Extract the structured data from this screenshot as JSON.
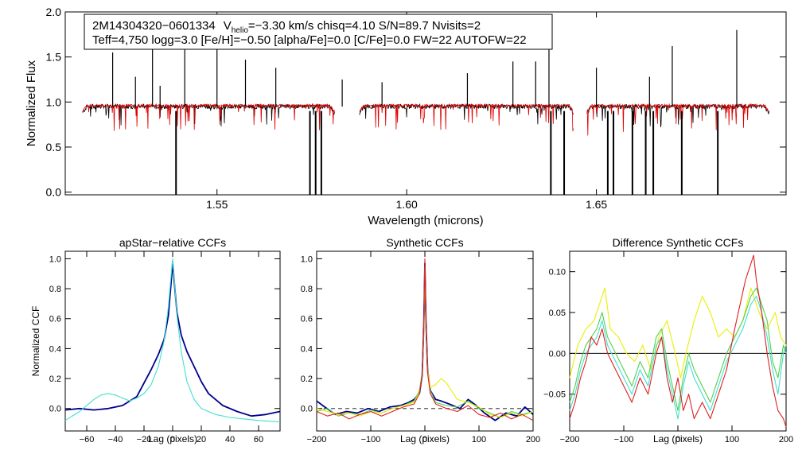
{
  "colors": {
    "observed": "#000000",
    "model": "#e00000",
    "navy": "#00008b",
    "cyan": "#40e0d0",
    "green": "#50d050",
    "yellow": "#e8f000",
    "red": "#e02020",
    "zero": "#000000",
    "dash": "#555555"
  },
  "chart_data": [
    {
      "type": "line",
      "panel": "spectrum",
      "info_line1": {
        "id": "2M14304320−0601334",
        "v_prefix": "V",
        "v_sub": "helio",
        "v_suffix": "=−3.30 km/s  chisq=4.10  S/N=89.7  Nvisits=2"
      },
      "info_line2": "Teff=4,750 logg=3.0 [Fe/H]=−0.50 [alpha/Fe]=0.0 [C/Fe]=0.0 FW=22 AUTOFW=22",
      "xlabel": "Wavelength (microns)",
      "ylabel": "Normalized Flux",
      "xlim": [
        1.51,
        1.7
      ],
      "ylim": [
        -0.03,
        2.0
      ],
      "xticks": [
        {
          "v": 1.55,
          "t": "1.55"
        },
        {
          "v": 1.6,
          "t": "1.60"
        },
        {
          "v": 1.65,
          "t": "1.65"
        }
      ],
      "yticks": [
        {
          "v": 0.0,
          "t": "0.0"
        },
        {
          "v": 0.5,
          "t": "0.5"
        },
        {
          "v": 1.0,
          "t": "1.0"
        },
        {
          "v": 1.5,
          "t": "1.5"
        },
        {
          "v": 2.0,
          "t": "2.0"
        }
      ],
      "chips": [
        [
          1.5145,
          1.581
        ],
        [
          1.5875,
          1.644
        ],
        [
          1.6475,
          1.6955
        ]
      ],
      "continuum": 0.95,
      "deep_lines": [
        1.5392,
        1.5745,
        1.576,
        1.5775,
        1.638,
        1.6415,
        1.653,
        1.6545,
        1.6595,
        1.663,
        1.665,
        1.6725,
        1.682
      ],
      "emission_lines": [
        {
          "x": 1.5225,
          "y": 1.55
        },
        {
          "x": 1.5285,
          "y": 1.28
        },
        {
          "x": 1.533,
          "y": 1.72
        },
        {
          "x": 1.535,
          "y": 1.18
        },
        {
          "x": 1.5415,
          "y": 1.58
        },
        {
          "x": 1.55,
          "y": 1.75
        },
        {
          "x": 1.5575,
          "y": 1.47
        },
        {
          "x": 1.5655,
          "y": 1.38
        },
        {
          "x": 1.583,
          "y": 1.25
        },
        {
          "x": 1.5935,
          "y": 1.22
        },
        {
          "x": 1.616,
          "y": 1.32
        },
        {
          "x": 1.628,
          "y": 1.45
        },
        {
          "x": 1.634,
          "y": 1.45
        },
        {
          "x": 1.6375,
          "y": 1.9
        },
        {
          "x": 1.65,
          "y": 1.38
        },
        {
          "x": 1.664,
          "y": 1.28
        },
        {
          "x": 1.67,
          "y": 1.62
        },
        {
          "x": 1.687,
          "y": 1.8
        }
      ]
    },
    {
      "type": "line",
      "panel": "ccf1",
      "title": "apStar−relative CCFs",
      "xlabel": "Lag (pixels)",
      "ylabel": "Normalized CCF",
      "xlim": [
        -75,
        75
      ],
      "ylim": [
        -0.15,
        1.05
      ],
      "xticks": [
        {
          "v": -60,
          "t": "−60"
        },
        {
          "v": -40,
          "t": "−40"
        },
        {
          "v": -20,
          "t": "−20"
        },
        {
          "v": 0,
          "t": "0"
        },
        {
          "v": 20,
          "t": "20"
        },
        {
          "v": 40,
          "t": "40"
        },
        {
          "v": 60,
          "t": "60"
        }
      ],
      "yticks": [
        {
          "v": 0.0,
          "t": "0.0"
        },
        {
          "v": 0.2,
          "t": "0.2"
        },
        {
          "v": 0.4,
          "t": "0.4"
        },
        {
          "v": 0.6,
          "t": "0.6"
        },
        {
          "v": 0.8,
          "t": "0.8"
        },
        {
          "v": 1.0,
          "t": "1.0"
        }
      ],
      "series": [
        {
          "name": "navy",
          "color": "navy",
          "x": [
            -75,
            -65,
            -55,
            -45,
            -35,
            -25,
            -20,
            -15,
            -10,
            -6,
            -3,
            -1,
            0,
            1,
            3,
            6,
            10,
            15,
            20,
            25,
            35,
            45,
            55,
            65,
            75
          ],
          "y": [
            -0.01,
            0.0,
            -0.01,
            0.0,
            0.02,
            0.08,
            0.17,
            0.26,
            0.36,
            0.46,
            0.62,
            0.85,
            0.98,
            0.86,
            0.64,
            0.49,
            0.38,
            0.28,
            0.18,
            0.1,
            0.02,
            -0.02,
            -0.05,
            -0.04,
            -0.02
          ]
        },
        {
          "name": "cyan",
          "color": "cyan",
          "x": [
            -75,
            -65,
            -55,
            -50,
            -45,
            -40,
            -35,
            -30,
            -25,
            -20,
            -15,
            -10,
            -6,
            -3,
            -1,
            0,
            1,
            3,
            6,
            10,
            15,
            20,
            30,
            40,
            50,
            60,
            75
          ],
          "y": [
            -0.08,
            -0.02,
            0.06,
            0.09,
            0.1,
            0.09,
            0.07,
            0.05,
            0.07,
            0.1,
            0.16,
            0.28,
            0.45,
            0.68,
            0.9,
            1.0,
            0.88,
            0.62,
            0.38,
            0.18,
            0.06,
            0.0,
            -0.04,
            -0.06,
            -0.07,
            -0.08,
            -0.09
          ]
        }
      ]
    },
    {
      "type": "line",
      "panel": "ccf2",
      "title": "Synthetic CCFs",
      "xlabel": "Lag (pixels)",
      "xlim": [
        -200,
        200
      ],
      "ylim": [
        -0.15,
        1.05
      ],
      "xticks": [
        {
          "v": -200,
          "t": "−200"
        },
        {
          "v": -100,
          "t": "−100"
        },
        {
          "v": 0,
          "t": "0"
        },
        {
          "v": 100,
          "t": "100"
        },
        {
          "v": 200,
          "t": "200"
        }
      ],
      "yticks": [
        {
          "v": 0.0,
          "t": "0.0"
        },
        {
          "v": 0.2,
          "t": "0.2"
        },
        {
          "v": 0.4,
          "t": "0.4"
        },
        {
          "v": 0.6,
          "t": "0.6"
        },
        {
          "v": 0.8,
          "t": "0.8"
        },
        {
          "v": 1.0,
          "t": "1.0"
        }
      ],
      "baseline": 0.0,
      "series": [
        {
          "name": "navy",
          "color": "navy",
          "x": [
            -200,
            -185,
            -165,
            -145,
            -125,
            -105,
            -85,
            -65,
            -45,
            -30,
            -20,
            -10,
            -5,
            -2,
            0,
            2,
            5,
            10,
            20,
            30,
            45,
            65,
            80,
            95,
            110,
            130,
            150,
            170,
            185,
            200
          ],
          "y": [
            0.05,
            0.01,
            -0.04,
            -0.02,
            -0.03,
            0.0,
            -0.02,
            0.01,
            0.02,
            0.04,
            0.06,
            0.1,
            0.22,
            0.55,
            0.97,
            0.58,
            0.26,
            0.12,
            0.06,
            0.05,
            0.03,
            0.0,
            0.06,
            0.02,
            -0.03,
            -0.08,
            -0.03,
            -0.05,
            0.01,
            -0.04
          ]
        },
        {
          "name": "green",
          "color": "green",
          "x": [
            -200,
            -180,
            -160,
            -140,
            -120,
            -100,
            -80,
            -60,
            -40,
            -20,
            -10,
            -5,
            -2,
            0,
            2,
            5,
            10,
            20,
            40,
            60,
            80,
            100,
            120,
            140,
            160,
            180,
            200
          ],
          "y": [
            -0.02,
            0.0,
            -0.05,
            -0.03,
            -0.04,
            -0.01,
            -0.03,
            0.0,
            0.02,
            0.05,
            0.12,
            0.24,
            0.52,
            0.96,
            0.55,
            0.25,
            0.12,
            0.04,
            0.02,
            0.01,
            0.05,
            0.0,
            -0.03,
            -0.06,
            -0.02,
            -0.04,
            -0.02
          ]
        },
        {
          "name": "yellow",
          "color": "yellow",
          "x": [
            -200,
            -180,
            -160,
            -140,
            -120,
            -100,
            -80,
            -60,
            -40,
            -20,
            -10,
            -5,
            -2,
            0,
            2,
            5,
            10,
            20,
            30,
            40,
            60,
            80,
            100,
            120,
            140,
            160,
            180,
            200
          ],
          "y": [
            0.0,
            -0.02,
            -0.04,
            -0.03,
            -0.05,
            -0.02,
            -0.03,
            0.0,
            0.02,
            0.04,
            0.11,
            0.22,
            0.5,
            0.95,
            0.55,
            0.26,
            0.14,
            0.16,
            0.2,
            0.17,
            0.06,
            0.04,
            0.01,
            -0.04,
            -0.06,
            -0.03,
            -0.05,
            -0.02
          ]
        },
        {
          "name": "red",
          "color": "red",
          "x": [
            -200,
            -180,
            -160,
            -140,
            -120,
            -100,
            -80,
            -60,
            -40,
            -20,
            -10,
            -5,
            -2,
            0,
            2,
            5,
            10,
            20,
            40,
            60,
            80,
            100,
            120,
            140,
            160,
            180,
            200
          ],
          "y": [
            -0.02,
            -0.05,
            -0.03,
            -0.07,
            -0.04,
            -0.02,
            -0.05,
            -0.02,
            0.01,
            0.03,
            0.1,
            0.23,
            0.53,
            1.0,
            0.56,
            0.24,
            0.1,
            0.03,
            0.0,
            -0.02,
            0.02,
            -0.04,
            -0.06,
            -0.03,
            -0.07,
            -0.04,
            -0.08
          ]
        }
      ]
    },
    {
      "type": "line",
      "panel": "ccf3",
      "title": "Difference Synthetic CCFs",
      "xlabel": "Lag (pixels)",
      "xlim": [
        -200,
        200
      ],
      "ylim": [
        -0.095,
        0.125
      ],
      "xticks": [
        {
          "v": -200,
          "t": "−200"
        },
        {
          "v": -100,
          "t": "−100"
        },
        {
          "v": 0,
          "t": "0"
        },
        {
          "v": 100,
          "t": "100"
        },
        {
          "v": 200,
          "t": "200"
        }
      ],
      "yticks": [
        {
          "v": -0.05,
          "t": "−0.05"
        },
        {
          "v": 0.0,
          "t": "0.00"
        },
        {
          "v": 0.05,
          "t": "0.05"
        },
        {
          "v": 0.1,
          "t": "0.10"
        }
      ],
      "baseline": 0.0,
      "series": [
        {
          "name": "yellow",
          "color": "yellow",
          "x": [
            -200,
            -185,
            -170,
            -155,
            -145,
            -135,
            -125,
            -110,
            -95,
            -80,
            -65,
            -50,
            -35,
            -20,
            -5,
            5,
            15,
            30,
            45,
            60,
            75,
            90,
            105,
            120,
            135,
            150,
            165,
            180,
            190,
            200
          ],
          "y": [
            -0.03,
            0.01,
            0.03,
            0.04,
            0.06,
            0.08,
            0.03,
            0.02,
            0.0,
            -0.01,
            0.01,
            -0.02,
            0.02,
            0.04,
            0.0,
            -0.03,
            0.0,
            0.04,
            0.07,
            0.05,
            0.02,
            0.03,
            0.02,
            0.04,
            0.08,
            0.05,
            0.03,
            0.05,
            0.02,
            0.01
          ]
        },
        {
          "name": "green",
          "color": "green",
          "x": [
            -200,
            -190,
            -180,
            -170,
            -160,
            -150,
            -140,
            -130,
            -115,
            -100,
            -85,
            -70,
            -55,
            -40,
            -30,
            -20,
            -10,
            0,
            10,
            20,
            30,
            45,
            60,
            75,
            90,
            105,
            120,
            135,
            145,
            155,
            165,
            175,
            185,
            195,
            200
          ],
          "y": [
            -0.06,
            -0.04,
            -0.01,
            0.01,
            0.02,
            0.03,
            0.05,
            0.02,
            0.0,
            -0.02,
            -0.04,
            -0.01,
            -0.03,
            0.02,
            0.03,
            -0.01,
            -0.04,
            -0.07,
            -0.03,
            0.0,
            -0.02,
            -0.04,
            -0.06,
            -0.03,
            0.0,
            0.02,
            0.04,
            0.07,
            0.08,
            0.06,
            0.04,
            -0.01,
            -0.03,
            0.01,
            0.0
          ]
        },
        {
          "name": "cyan",
          "color": "cyan",
          "x": [
            -200,
            -190,
            -180,
            -170,
            -160,
            -150,
            -140,
            -130,
            -115,
            -100,
            -85,
            -70,
            -55,
            -40,
            -30,
            -20,
            -10,
            0,
            10,
            20,
            30,
            45,
            60,
            75,
            90,
            105,
            120,
            135,
            145,
            155,
            165,
            175,
            185,
            195,
            200
          ],
          "y": [
            -0.07,
            -0.05,
            -0.02,
            0.0,
            0.01,
            0.02,
            0.04,
            0.01,
            -0.01,
            -0.03,
            -0.05,
            -0.02,
            -0.04,
            0.01,
            0.02,
            -0.02,
            -0.05,
            -0.08,
            -0.04,
            -0.01,
            -0.03,
            -0.05,
            -0.07,
            -0.04,
            -0.01,
            0.01,
            0.03,
            0.06,
            0.07,
            0.05,
            0.02,
            -0.02,
            -0.05,
            0.0,
            0.01
          ]
        },
        {
          "name": "red",
          "color": "red",
          "x": [
            -200,
            -190,
            -180,
            -170,
            -160,
            -150,
            -140,
            -130,
            -115,
            -100,
            -85,
            -70,
            -55,
            -40,
            -30,
            -20,
            -10,
            0,
            10,
            20,
            30,
            45,
            60,
            75,
            90,
            105,
            115,
            125,
            135,
            140,
            145,
            155,
            165,
            175,
            185,
            195,
            200
          ],
          "y": [
            -0.08,
            -0.06,
            -0.03,
            -0.01,
            0.02,
            0.01,
            0.03,
            0.0,
            -0.02,
            -0.04,
            -0.06,
            -0.03,
            -0.05,
            0.0,
            0.02,
            -0.03,
            -0.06,
            -0.03,
            -0.07,
            -0.05,
            -0.08,
            -0.06,
            -0.08,
            -0.05,
            -0.02,
            0.03,
            0.06,
            0.09,
            0.11,
            0.12,
            0.09,
            0.05,
            0.0,
            -0.04,
            -0.07,
            -0.08,
            -0.09
          ]
        }
      ]
    }
  ]
}
